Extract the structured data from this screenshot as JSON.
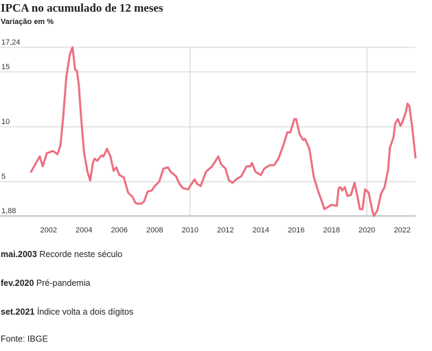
{
  "chart_data": {
    "type": "line",
    "title": "IPCA no acumulado de 12 meses",
    "subtitle": "Variação em %",
    "source": "Fonte: IBGE",
    "color": "#ec6f80",
    "xlim": [
      1999.25,
      2022.75
    ],
    "xticks": [
      2002,
      2004,
      2006,
      2008,
      2010,
      2012,
      2014,
      2016,
      2018,
      2020,
      2022
    ],
    "xgrid": [
      2010,
      2020
    ],
    "ylim": [
      1.88,
      17.24
    ],
    "yticks": [
      {
        "value": 1.88,
        "label": "1,88"
      },
      5,
      10,
      15,
      {
        "value": 17.24,
        "label": "17,24"
      }
    ],
    "grid": true,
    "x": [
      2001.0,
      2001.25,
      2001.5,
      2001.67,
      2001.9,
      2002.25,
      2002.5,
      2002.67,
      2002.83,
      2003.0,
      2003.2,
      2003.35,
      2003.5,
      2003.6,
      2003.7,
      2003.83,
      2004.0,
      2004.2,
      2004.35,
      2004.5,
      2004.6,
      2004.75,
      2005.0,
      2005.1,
      2005.3,
      2005.5,
      2005.67,
      2005.83,
      2006.0,
      2006.25,
      2006.5,
      2006.75,
      2006.9,
      2007.0,
      2007.25,
      2007.4,
      2007.6,
      2007.83,
      2008.0,
      2008.25,
      2008.5,
      2008.75,
      2008.9,
      2009.2,
      2009.4,
      2009.6,
      2009.9,
      2010.0,
      2010.25,
      2010.4,
      2010.6,
      2010.9,
      2011.25,
      2011.6,
      2011.75,
      2012.0,
      2012.2,
      2012.4,
      2012.6,
      2012.9,
      2013.2,
      2013.4,
      2013.5,
      2013.7,
      2014.0,
      2014.2,
      2014.5,
      2014.75,
      2015.0,
      2015.25,
      2015.5,
      2015.67,
      2015.9,
      2016.0,
      2016.2,
      2016.4,
      2016.5,
      2016.75,
      2017.0,
      2017.25,
      2017.5,
      2017.6,
      2017.8,
      2018.0,
      2018.3,
      2018.4,
      2018.5,
      2018.6,
      2018.75,
      2018.9,
      2019.1,
      2019.3,
      2019.5,
      2019.6,
      2019.75,
      2019.9,
      2020.1,
      2020.3,
      2020.4,
      2020.6,
      2020.8,
      2021.0,
      2021.2,
      2021.3,
      2021.5,
      2021.6,
      2021.75,
      2021.9,
      2022.0,
      2022.2,
      2022.3,
      2022.4,
      2022.55,
      2022.65,
      2022.75
    ],
    "values": [
      5.9,
      6.6,
      7.3,
      6.4,
      7.6,
      7.8,
      7.5,
      8.3,
      11,
      14.5,
      16.6,
      17.24,
      15.2,
      15.1,
      13.9,
      11,
      7.7,
      5.9,
      5.1,
      6.7,
      7.1,
      6.9,
      7.4,
      7.3,
      8.0,
      7.3,
      6.0,
      6.3,
      5.6,
      5.4,
      4.0,
      3.6,
      3.1,
      3.0,
      3.0,
      3.2,
      4.1,
      4.2,
      4.6,
      5.0,
      6.2,
      6.3,
      5.9,
      5.5,
      4.8,
      4.4,
      4.3,
      4.6,
      5.2,
      4.8,
      4.6,
      5.9,
      6.4,
      7.3,
      6.6,
      6.2,
      5.1,
      4.9,
      5.2,
      5.5,
      6.4,
      6.4,
      6.7,
      5.9,
      5.6,
      6.2,
      6.5,
      6.5,
      7.1,
      8.2,
      9.5,
      9.5,
      10.7,
      10.7,
      9.3,
      8.8,
      8.9,
      8.0,
      5.4,
      4.1,
      3.0,
      2.5,
      2.7,
      2.9,
      2.8,
      4.4,
      4.5,
      4.2,
      4.5,
      3.7,
      3.8,
      4.9,
      3.4,
      2.5,
      2.5,
      4.3,
      4.0,
      2.4,
      1.88,
      2.4,
      3.9,
      4.5,
      6.1,
      8.1,
      9.0,
      10.3,
      10.7,
      10.1,
      10.4,
      11.3,
      12.1,
      11.9,
      10.1,
      8.7,
      7.2
    ],
    "annotations": [
      {
        "date": "mai.2003",
        "text": "Recorde neste século"
      },
      {
        "date": "fev.2020",
        "text": "Pré-pandemia"
      },
      {
        "date": "set.2021",
        "text": "Índice volta a dois dígitos"
      }
    ]
  }
}
